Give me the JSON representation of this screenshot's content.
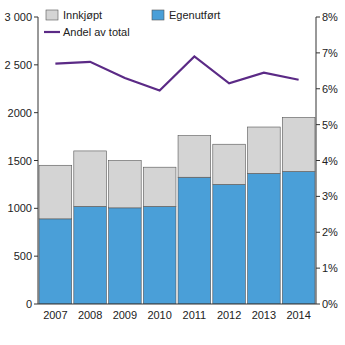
{
  "chart_data": {
    "type": "bar",
    "stacked": true,
    "legend": "top-left",
    "categories": [
      "2007",
      "2008",
      "2009",
      "2010",
      "2011",
      "2012",
      "2013",
      "2014"
    ],
    "series": [
      {
        "name": "Egenutført",
        "type": "bar",
        "color": "#4a9fd8",
        "values": [
          890,
          1020,
          1005,
          1020,
          1325,
          1250,
          1365,
          1385
        ]
      },
      {
        "name": "Innkjøpt",
        "type": "bar",
        "color": "#d4d4d4",
        "values": [
          560,
          580,
          495,
          410,
          435,
          420,
          485,
          565
        ]
      },
      {
        "name": "Andel av total",
        "type": "line",
        "axis": "y2",
        "color": "#5b2a86",
        "values": [
          6.7,
          6.75,
          6.3,
          5.95,
          6.9,
          6.15,
          6.45,
          6.25
        ]
      }
    ],
    "ylim": [
      0,
      3000
    ],
    "yticks": [
      0,
      500,
      1000,
      1500,
      2000,
      {
        "value": 2500,
        "label": "2 500"
      },
      {
        "value": 3000,
        "label": "3 000"
      }
    ],
    "y2lim": [
      0,
      8
    ],
    "y2ticks": [
      {
        "value": 0,
        "label": "0%"
      },
      {
        "value": 1,
        "label": "1%"
      },
      {
        "value": 2,
        "label": "2%"
      },
      {
        "value": 3,
        "label": "3%"
      },
      {
        "value": 4,
        "label": "4%"
      },
      {
        "value": 5,
        "label": "5%"
      },
      {
        "value": 6,
        "label": "6%"
      },
      {
        "value": 7,
        "label": "7%"
      },
      {
        "value": 8,
        "label": "8%"
      }
    ]
  }
}
